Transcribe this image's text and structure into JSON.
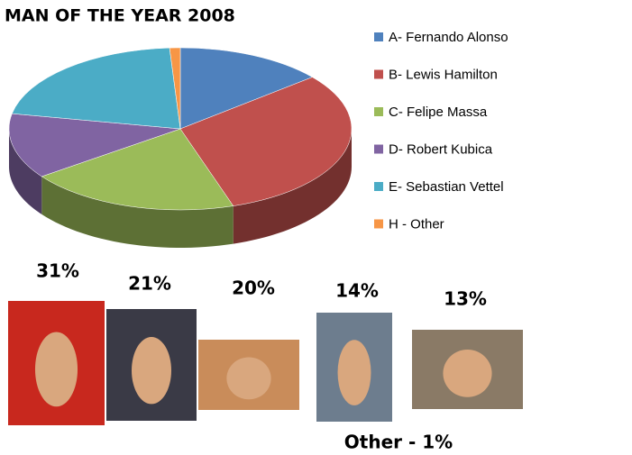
{
  "chart_data": {
    "type": "pie3d",
    "title": "MAN OF THE YEAR 2008",
    "categories": [
      "A- Fernando Alonso",
      "B- Lewis Hamilton",
      "C- Felipe Massa",
      "D- Robert Kubica",
      "E- Sebastian Vettel",
      "H - Other"
    ],
    "values": [
      14,
      31,
      20,
      13,
      21,
      1
    ],
    "value_labels": [
      "14%",
      "31%",
      "20%",
      "13%",
      "21%",
      "Other - 1%"
    ],
    "colors": [
      "#4f81bd",
      "#c0504d",
      "#9bbb59",
      "#8064a2",
      "#4bacc6",
      "#f79646"
    ]
  }
}
